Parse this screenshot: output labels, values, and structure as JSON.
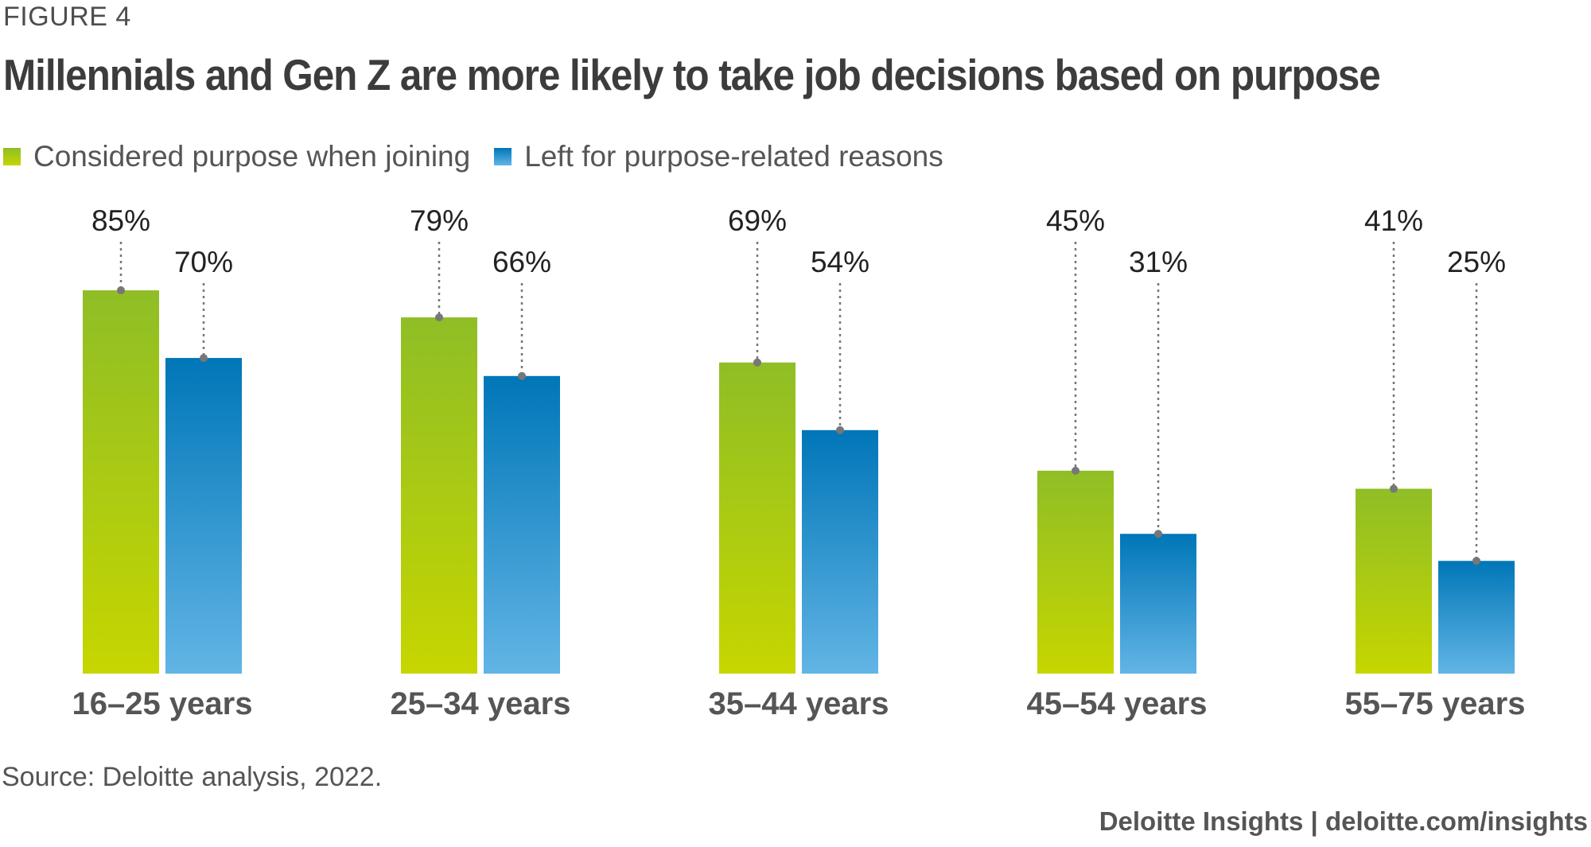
{
  "figure_label": "FIGURE 4",
  "title": "Millennials and Gen Z are more likely to take job decisions based on purpose",
  "source": "Source: Deloitte analysis, 2022.",
  "footer": {
    "brand": "Deloitte Insights",
    "separator": "|",
    "url": "deloitte.com/insights"
  },
  "colors": {
    "green_top": "#8fbe26",
    "green_bottom": "#c6d600",
    "blue_top": "#0076b8",
    "blue_bottom": "#62b5e5",
    "leader": "#777777"
  },
  "chart_data": {
    "type": "bar",
    "title": "Millennials and Gen Z are more likely to take job decisions based on purpose",
    "xlabel": "",
    "ylabel": "",
    "ylim": [
      0,
      100
    ],
    "grid": false,
    "legend_position": "top-left",
    "categories": [
      "16–25 years",
      "25–34 years",
      "35–44 years",
      "45–54 years",
      "55–75 years"
    ],
    "series": [
      {
        "name": "Considered purpose when joining",
        "values": [
          85,
          79,
          69,
          45,
          41
        ],
        "labels": [
          "85%",
          "79%",
          "69%",
          "45%",
          "41%"
        ]
      },
      {
        "name": "Left for purpose-related reasons",
        "values": [
          70,
          66,
          54,
          31,
          25
        ],
        "labels": [
          "70%",
          "66%",
          "54%",
          "31%",
          "25%"
        ]
      }
    ]
  }
}
